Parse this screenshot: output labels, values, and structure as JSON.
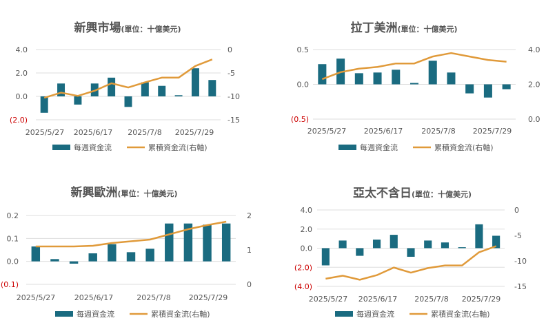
{
  "chart_data": [
    {
      "type": "bar",
      "title": "新興市場",
      "unit": "(單位：十億美元)",
      "x_tick_labels": [
        "2025/5/27",
        "2025/6/17",
        "2025/7/8",
        "2025/7/29"
      ],
      "y_left": {
        "ticks": [
          "4.0",
          "2.0",
          "0.0",
          "(2.0)"
        ],
        "values": [
          4,
          2,
          0,
          -2
        ],
        "range": [
          -2,
          4
        ]
      },
      "y_right": {
        "ticks": [
          "0",
          "-5",
          "-10",
          "-15"
        ],
        "values": [
          0,
          -5,
          -10,
          -15
        ],
        "range": [
          -15,
          0
        ]
      },
      "series": [
        {
          "name": "每週資金流",
          "axis": "left",
          "kind": "bar",
          "color": "#1a6b80",
          "values": [
            -1.4,
            1.1,
            -0.7,
            1.1,
            1.6,
            -0.9,
            1.2,
            0.9,
            0.1,
            2.4,
            1.4
          ]
        },
        {
          "name": "累積資金流(右軸)",
          "axis": "right",
          "kind": "line",
          "color": "#e09a3a",
          "values": [
            -10.3,
            -9.2,
            -9.9,
            -8.8,
            -7.2,
            -8.1,
            -7.0,
            -6.0,
            -6.0,
            -3.5,
            -2.1
          ]
        }
      ],
      "legend_position": "bottom"
    },
    {
      "type": "bar",
      "title": "拉丁美洲",
      "unit": "(單位：十億美元)",
      "x_tick_labels": [
        "2025/5/27",
        "2025/6/17",
        "2025/7/8",
        "2025/7/29"
      ],
      "y_left": {
        "ticks": [
          "0.5",
          "0.0",
          "(0.5)"
        ],
        "values": [
          0.5,
          0,
          -0.5
        ],
        "range": [
          -0.5,
          0.5
        ]
      },
      "y_right": {
        "ticks": [
          "4.0",
          "2.0",
          "0.0"
        ],
        "values": [
          4,
          2,
          0
        ],
        "range": [
          0,
          4
        ]
      },
      "series": [
        {
          "name": "每週資金流",
          "axis": "left",
          "kind": "bar",
          "color": "#1a6b80",
          "values": [
            0.29,
            0.37,
            0.16,
            0.17,
            0.21,
            0.02,
            0.34,
            0.17,
            -0.13,
            -0.19,
            -0.07
          ]
        },
        {
          "name": "累積資金流(右軸)",
          "axis": "right",
          "kind": "line",
          "color": "#e09a3a",
          "values": [
            2.3,
            2.7,
            2.9,
            3.0,
            3.2,
            3.2,
            3.6,
            3.8,
            3.6,
            3.4,
            3.3
          ]
        }
      ],
      "legend_position": "bottom"
    },
    {
      "type": "bar",
      "title": "新興歐洲",
      "unit": "(單位：十億美元)",
      "x_tick_labels": [
        "2025/5/27",
        "2025/6/17",
        "2025/7/8",
        "2025/7/29"
      ],
      "y_left": {
        "ticks": [
          "0.2",
          "0.1",
          "0.0",
          "(0.1)"
        ],
        "values": [
          0.2,
          0.1,
          0,
          -0.1
        ],
        "range": [
          -0.1,
          0.2
        ]
      },
      "y_right": {
        "ticks": [
          "2",
          "1",
          "0"
        ],
        "values": [
          2,
          1,
          0
        ],
        "range": [
          0,
          2
        ]
      },
      "series": [
        {
          "name": "每週資金流",
          "axis": "left",
          "kind": "bar",
          "color": "#1a6b80",
          "values": [
            0.065,
            0.01,
            -0.01,
            0.035,
            0.075,
            0.04,
            0.055,
            0.165,
            0.165,
            0.16,
            0.165
          ]
        },
        {
          "name": "累積資金流(右軸)",
          "axis": "right",
          "kind": "line",
          "color": "#e09a3a",
          "values": [
            1.1,
            1.1,
            1.1,
            1.12,
            1.2,
            1.25,
            1.3,
            1.45,
            1.6,
            1.72,
            1.82
          ]
        }
      ],
      "legend_position": "bottom"
    },
    {
      "type": "bar",
      "title": "亞太不含日",
      "unit": "(單位：十億美元)",
      "x_tick_labels": [
        "2025/5/27",
        "2025/6/17",
        "2025/7/8",
        "2025/7/29"
      ],
      "y_left": {
        "ticks": [
          "4.0",
          "2.0",
          "0.0",
          "(2.0)",
          "(4.0)"
        ],
        "values": [
          4,
          2,
          0,
          -2,
          -4
        ],
        "range": [
          -4,
          4
        ]
      },
      "y_right": {
        "ticks": [
          "0",
          "-5",
          "-10",
          "-15"
        ],
        "values": [
          0,
          -5,
          -10,
          -15
        ],
        "range": [
          -15,
          0
        ]
      },
      "series": [
        {
          "name": "每週資金流",
          "axis": "left",
          "kind": "bar",
          "color": "#1a6b80",
          "values": [
            -1.8,
            0.8,
            -0.8,
            0.9,
            1.4,
            -0.9,
            0.8,
            0.6,
            0.1,
            2.5,
            1.3
          ]
        },
        {
          "name": "累積資金流(右軸)",
          "axis": "right",
          "kind": "line",
          "color": "#e09a3a",
          "values": [
            -13.5,
            -12.9,
            -13.7,
            -12.8,
            -11.3,
            -12.3,
            -11.4,
            -10.9,
            -10.9,
            -8.3,
            -7.1
          ]
        }
      ],
      "legend_position": "bottom"
    }
  ]
}
